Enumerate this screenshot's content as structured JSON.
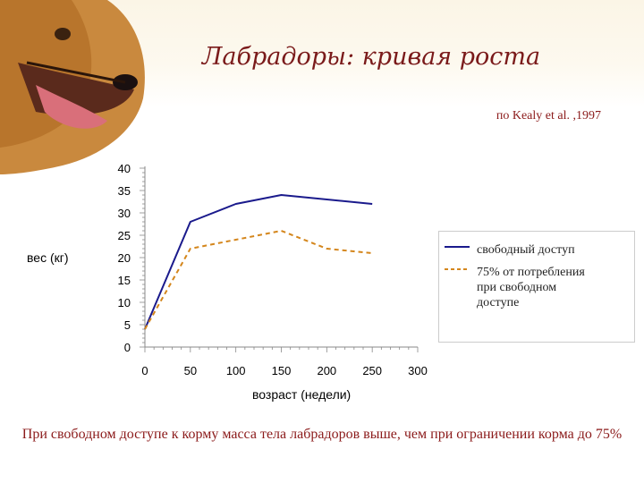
{
  "slide": {
    "title": "Лабрадоры: кривая роста",
    "source": "по Kealy et al. ,1997",
    "caption": "При свободном доступе к корму масса тела лабрадоров выше, чем при ограничении корма до 75%"
  },
  "colors": {
    "title": "#7a1a1a",
    "caption": "#8b1a1a",
    "series_free": "#1a1a8c",
    "series_restricted": "#d4861c"
  },
  "chart_data": {
    "type": "line",
    "title": "",
    "xlabel": "возраст (недели)",
    "ylabel": "вес (кг)",
    "xlim": [
      0,
      300
    ],
    "ylim": [
      0,
      40
    ],
    "x_ticks": [
      "0",
      "50",
      "100",
      "150",
      "200",
      "250",
      "300"
    ],
    "y_ticks": [
      "0",
      "5",
      "10",
      "15",
      "20",
      "25",
      "30",
      "35",
      "40"
    ],
    "grid": false,
    "legend_position": "right",
    "series": [
      {
        "name": "свободный доступ",
        "style": "solid",
        "color": "#1a1a8c",
        "x": [
          0,
          50,
          100,
          150,
          250
        ],
        "y": [
          4,
          28,
          32,
          34,
          32
        ]
      },
      {
        "name": "75% от потребления\nпри свободном\nдоступе",
        "style": "dashed",
        "color": "#d4861c",
        "x": [
          0,
          50,
          100,
          150,
          200,
          250
        ],
        "y": [
          4,
          22,
          24,
          26,
          22,
          21
        ]
      }
    ]
  }
}
